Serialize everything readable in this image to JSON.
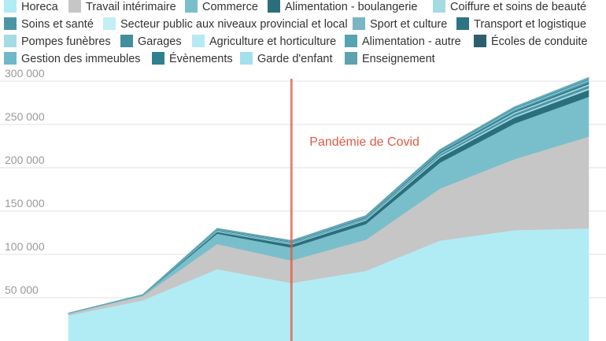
{
  "chart_data": {
    "type": "area",
    "stacked": true,
    "title": "",
    "xlabel": "",
    "ylabel": "",
    "x": [
      0,
      1,
      2,
      3,
      4,
      5,
      6,
      7
    ],
    "ylim": [
      0,
      310000
    ],
    "yticks": [
      50000,
      100000,
      150000,
      200000,
      250000,
      300000
    ],
    "ytick_labels": [
      "50 000",
      "100 000",
      "150 000",
      "200 000",
      "250 000",
      "300 000"
    ],
    "grid": true,
    "legend_position": "top",
    "series": [
      {
        "name": "Horeca",
        "color": "#b1ecf5",
        "values": [
          29500,
          47000,
          83000,
          67000,
          81000,
          116000,
          128000,
          130000
        ]
      },
      {
        "name": "Travail intérimaire",
        "color": "#c6c6c6",
        "values": [
          2000,
          5000,
          29000,
          26000,
          36000,
          60000,
          82000,
          106000
        ]
      },
      {
        "name": "Commerce",
        "color": "#79bfcb",
        "values": [
          300,
          900,
          12000,
          15000,
          18000,
          30000,
          41000,
          46000
        ]
      },
      {
        "name": "Alimentation - boulangerie",
        "color": "#2b6f7c",
        "values": [
          100,
          200,
          2000,
          3500,
          4000,
          6000,
          7000,
          8000
        ]
      },
      {
        "name": "Coiffure et soins de beauté",
        "color": "#a4dbe3",
        "values": [
          50,
          100,
          600,
          800,
          1000,
          1500,
          1700,
          1900
        ]
      },
      {
        "name": "Soins et santé",
        "color": "#4c95a6",
        "values": [
          50,
          100,
          900,
          1000,
          1200,
          2000,
          2800,
          3000
        ]
      },
      {
        "name": "Secteur public aux niveaux provincial et local",
        "color": "#c3eef6",
        "values": [
          20,
          50,
          200,
          250,
          300,
          500,
          700,
          800
        ]
      },
      {
        "name": "Sport et culture",
        "color": "#79b5c3",
        "values": [
          20,
          50,
          400,
          350,
          400,
          700,
          1000,
          1200
        ]
      },
      {
        "name": "Transport et logistique",
        "color": "#2e7485",
        "values": [
          50,
          100,
          500,
          600,
          900,
          1200,
          1500,
          1800
        ]
      },
      {
        "name": "Pompes funèbres",
        "color": "#a5dbe6",
        "values": [
          10,
          20,
          100,
          100,
          150,
          200,
          300,
          350
        ]
      },
      {
        "name": "Garages",
        "color": "#418f9d",
        "values": [
          20,
          40,
          300,
          300,
          450,
          700,
          1000,
          1200
        ]
      },
      {
        "name": "Agriculture et horticulture",
        "color": "#b5e9f4",
        "values": [
          10,
          30,
          200,
          200,
          250,
          400,
          600,
          700
        ]
      },
      {
        "name": "Alimentation - autre",
        "color": "#56a4b3",
        "values": [
          20,
          40,
          300,
          300,
          400,
          700,
          1000,
          1200
        ]
      },
      {
        "name": "Écoles de conduite",
        "color": "#2c5f6e",
        "values": [
          5,
          10,
          80,
          80,
          100,
          150,
          200,
          250
        ]
      },
      {
        "name": "Gestion des immeubles",
        "color": "#6db9c7",
        "values": [
          10,
          20,
          150,
          150,
          200,
          350,
          500,
          600
        ]
      },
      {
        "name": "Évènements",
        "color": "#2f8190",
        "values": [
          10,
          20,
          150,
          200,
          200,
          300,
          400,
          500
        ]
      },
      {
        "name": "Garde d'enfant",
        "color": "#a3e0ec",
        "values": [
          10,
          20,
          150,
          150,
          200,
          300,
          400,
          500
        ]
      },
      {
        "name": "Enseignement",
        "color": "#5ea2ae",
        "values": [
          10,
          20,
          120,
          150,
          150,
          250,
          350,
          400
        ]
      }
    ],
    "annotations": [
      {
        "text": "Pandémie de Covid",
        "x": 3,
        "color": "#e05a45"
      }
    ]
  }
}
